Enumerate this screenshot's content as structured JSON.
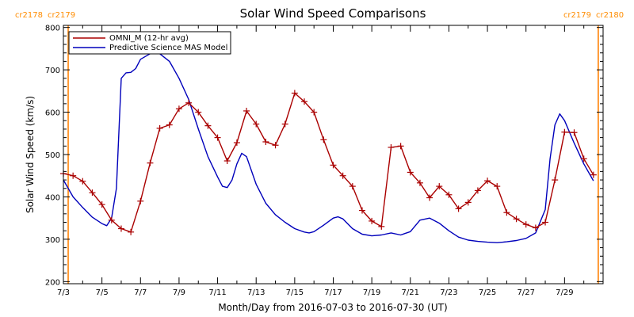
{
  "chart_data": {
    "type": "line",
    "title": "Solar Wind Speed Comparisons",
    "xlabel": "Month/Day from 2016-07-03 to 2016-07-30 (UT)",
    "ylabel": "Solar Wind Speed (km/s)",
    "xlim": [
      "2016-07-03",
      "2016-07-31"
    ],
    "ylim": [
      195,
      805
    ],
    "y_ticks": [
      200,
      300,
      400,
      500,
      600,
      700,
      800
    ],
    "x_ticks": [
      {
        "date": "2016-07-03",
        "label": "7/3"
      },
      {
        "date": "2016-07-05",
        "label": "7/5"
      },
      {
        "date": "2016-07-07",
        "label": "7/7"
      },
      {
        "date": "2016-07-09",
        "label": "7/9"
      },
      {
        "date": "2016-07-11",
        "label": "7/11"
      },
      {
        "date": "2016-07-13",
        "label": "7/13"
      },
      {
        "date": "2016-07-15",
        "label": "7/15"
      },
      {
        "date": "2016-07-17",
        "label": "7/17"
      },
      {
        "date": "2016-07-19",
        "label": "7/19"
      },
      {
        "date": "2016-07-21",
        "label": "7/21"
      },
      {
        "date": "2016-07-23",
        "label": "7/23"
      },
      {
        "date": "2016-07-25",
        "label": "7/25"
      },
      {
        "date": "2016-07-27",
        "label": "7/27"
      },
      {
        "date": "2016-07-29",
        "label": "7/29"
      }
    ],
    "legend": "top-left",
    "carrington_rotations": [
      {
        "date": "2016-07-03 06:00",
        "label_left": "cr2178",
        "label_right": "cr2179"
      },
      {
        "date": "2016-07-30 18:00",
        "label_left": "cr2179",
        "label_right": "cr2180"
      }
    ],
    "series": [
      {
        "name": "OMNI_M (12-hr avg)",
        "color": "#aa0000",
        "marker": "plus",
        "points": [
          [
            "2016-07-03 00:00",
            455
          ],
          [
            "2016-07-03 12:00",
            450
          ],
          [
            "2016-07-04 00:00",
            437
          ],
          [
            "2016-07-04 12:00",
            410
          ],
          [
            "2016-07-05 00:00",
            382
          ],
          [
            "2016-07-05 12:00",
            345
          ],
          [
            "2016-07-06 00:00",
            325
          ],
          [
            "2016-07-06 12:00",
            317
          ],
          [
            "2016-07-07 00:00",
            390
          ],
          [
            "2016-07-07 12:00",
            480
          ],
          [
            "2016-07-08 00:00",
            562
          ],
          [
            "2016-07-08 12:00",
            570
          ],
          [
            "2016-07-09 00:00",
            608
          ],
          [
            "2016-07-09 12:00",
            622
          ],
          [
            "2016-07-10 00:00",
            600
          ],
          [
            "2016-07-10 12:00",
            568
          ],
          [
            "2016-07-11 00:00",
            540
          ],
          [
            "2016-07-11 12:00",
            485
          ],
          [
            "2016-07-12 00:00",
            528
          ],
          [
            "2016-07-12 12:00",
            603
          ],
          [
            "2016-07-13 00:00",
            572
          ],
          [
            "2016-07-13 12:00",
            530
          ],
          [
            "2016-07-14 00:00",
            522
          ],
          [
            "2016-07-14 12:00",
            572
          ],
          [
            "2016-07-15 00:00",
            645
          ],
          [
            "2016-07-15 12:00",
            625
          ],
          [
            "2016-07-16 00:00",
            600
          ],
          [
            "2016-07-16 12:00",
            535
          ],
          [
            "2016-07-17 00:00",
            475
          ],
          [
            "2016-07-17 12:00",
            450
          ],
          [
            "2016-07-18 00:00",
            425
          ],
          [
            "2016-07-18 12:00",
            368
          ],
          [
            "2016-07-19 00:00",
            343
          ],
          [
            "2016-07-19 12:00",
            330
          ],
          [
            "2016-07-20 00:00",
            517
          ],
          [
            "2016-07-20 12:00",
            520
          ],
          [
            "2016-07-21 00:00",
            458
          ],
          [
            "2016-07-21 12:00",
            433
          ],
          [
            "2016-07-22 00:00",
            398
          ],
          [
            "2016-07-22 12:00",
            425
          ],
          [
            "2016-07-23 00:00",
            405
          ],
          [
            "2016-07-23 12:00",
            372
          ],
          [
            "2016-07-24 00:00",
            387
          ],
          [
            "2016-07-24 12:00",
            415
          ],
          [
            "2016-07-25 00:00",
            438
          ],
          [
            "2016-07-25 12:00",
            425
          ],
          [
            "2016-07-26 00:00",
            363
          ],
          [
            "2016-07-26 12:00",
            348
          ],
          [
            "2016-07-27 00:00",
            335
          ],
          [
            "2016-07-27 12:00",
            327
          ],
          [
            "2016-07-28 00:00",
            340
          ],
          [
            "2016-07-28 12:00",
            440
          ],
          [
            "2016-07-29 00:00",
            553
          ],
          [
            "2016-07-29 12:00",
            552
          ],
          [
            "2016-07-30 00:00",
            490
          ],
          [
            "2016-07-30 12:00",
            452
          ]
        ]
      },
      {
        "name": "Predictive Science MAS Model",
        "color": "#0000bb",
        "marker": "none",
        "points": [
          [
            "2016-07-03 00:00",
            440
          ],
          [
            "2016-07-03 12:00",
            400
          ],
          [
            "2016-07-04 00:00",
            375
          ],
          [
            "2016-07-04 12:00",
            352
          ],
          [
            "2016-07-05 00:00",
            337
          ],
          [
            "2016-07-05 06:00",
            332
          ],
          [
            "2016-07-05 12:00",
            350
          ],
          [
            "2016-07-05 18:00",
            420
          ],
          [
            "2016-07-06 00:00",
            680
          ],
          [
            "2016-07-06 06:00",
            693
          ],
          [
            "2016-07-06 12:00",
            694
          ],
          [
            "2016-07-06 18:00",
            703
          ],
          [
            "2016-07-07 00:00",
            725
          ],
          [
            "2016-07-07 12:00",
            738
          ],
          [
            "2016-07-08 00:00",
            738
          ],
          [
            "2016-07-08 12:00",
            720
          ],
          [
            "2016-07-09 00:00",
            680
          ],
          [
            "2016-07-09 12:00",
            630
          ],
          [
            "2016-07-10 00:00",
            560
          ],
          [
            "2016-07-10 12:00",
            495
          ],
          [
            "2016-07-11 00:00",
            447
          ],
          [
            "2016-07-11 06:00",
            425
          ],
          [
            "2016-07-11 12:00",
            422
          ],
          [
            "2016-07-11 18:00",
            440
          ],
          [
            "2016-07-12 00:00",
            478
          ],
          [
            "2016-07-12 06:00",
            503
          ],
          [
            "2016-07-12 12:00",
            495
          ],
          [
            "2016-07-13 00:00",
            430
          ],
          [
            "2016-07-13 12:00",
            385
          ],
          [
            "2016-07-14 00:00",
            358
          ],
          [
            "2016-07-14 12:00",
            340
          ],
          [
            "2016-07-15 00:00",
            325
          ],
          [
            "2016-07-15 12:00",
            317
          ],
          [
            "2016-07-15 18:00",
            315
          ],
          [
            "2016-07-16 00:00",
            318
          ],
          [
            "2016-07-16 12:00",
            333
          ],
          [
            "2016-07-17 00:00",
            350
          ],
          [
            "2016-07-17 06:00",
            353
          ],
          [
            "2016-07-17 12:00",
            348
          ],
          [
            "2016-07-18 00:00",
            325
          ],
          [
            "2016-07-18 12:00",
            312
          ],
          [
            "2016-07-19 00:00",
            308
          ],
          [
            "2016-07-19 12:00",
            310
          ],
          [
            "2016-07-20 00:00",
            315
          ],
          [
            "2016-07-20 12:00",
            310
          ],
          [
            "2016-07-21 00:00",
            318
          ],
          [
            "2016-07-21 12:00",
            345
          ],
          [
            "2016-07-22 00:00",
            350
          ],
          [
            "2016-07-22 12:00",
            338
          ],
          [
            "2016-07-23 00:00",
            320
          ],
          [
            "2016-07-23 12:00",
            305
          ],
          [
            "2016-07-24 00:00",
            298
          ],
          [
            "2016-07-24 12:00",
            295
          ],
          [
            "2016-07-25 00:00",
            293
          ],
          [
            "2016-07-25 12:00",
            292
          ],
          [
            "2016-07-26 00:00",
            294
          ],
          [
            "2016-07-26 12:00",
            297
          ],
          [
            "2016-07-27 00:00",
            302
          ],
          [
            "2016-07-27 12:00",
            315
          ],
          [
            "2016-07-28 00:00",
            370
          ],
          [
            "2016-07-28 06:00",
            490
          ],
          [
            "2016-07-28 12:00",
            570
          ],
          [
            "2016-07-28 18:00",
            596
          ],
          [
            "2016-07-29 00:00",
            580
          ],
          [
            "2016-07-29 12:00",
            527
          ],
          [
            "2016-07-30 00:00",
            478
          ],
          [
            "2016-07-30 12:00",
            438
          ]
        ]
      }
    ]
  },
  "colors": {
    "carrington_line": "#ff9933",
    "carrington_text": "#ff8c00",
    "axis": "#000000",
    "background": "#ffffff"
  }
}
